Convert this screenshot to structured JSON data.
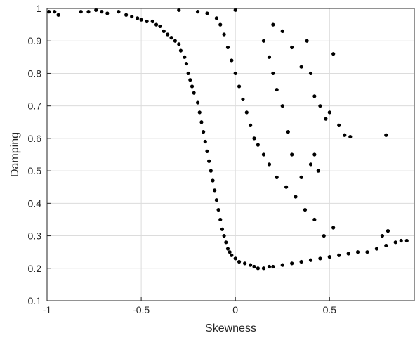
{
  "chart_data": {
    "type": "scatter",
    "title": "",
    "xlabel": "Skewness",
    "ylabel": "Damping",
    "xlim": [
      -1,
      0.95
    ],
    "ylim": [
      0.1,
      1
    ],
    "xticks": [
      -1,
      -0.5,
      0,
      0.5
    ],
    "xtick_labels": [
      "-1",
      "-0.5",
      "0",
      "0.5"
    ],
    "yticks": [
      0.1,
      0.2,
      0.3,
      0.4,
      0.5,
      0.6,
      0.7,
      0.8,
      0.9,
      1
    ],
    "ytick_labels": [
      "0.1",
      "0.2",
      "0.3",
      "0.4",
      "0.5",
      "0.6",
      "0.7",
      "0.8",
      "0.9",
      "1"
    ],
    "grid": true,
    "marker_color": "#000000",
    "series": [
      {
        "name": "",
        "points": [
          [
            -0.99,
            0.99
          ],
          [
            -0.96,
            0.99
          ],
          [
            -0.94,
            0.98
          ],
          [
            -0.82,
            0.99
          ],
          [
            -0.78,
            0.99
          ],
          [
            -0.74,
            0.995
          ],
          [
            -0.71,
            0.99
          ],
          [
            -0.68,
            0.985
          ],
          [
            -0.62,
            0.99
          ],
          [
            -0.58,
            0.98
          ],
          [
            -0.55,
            0.975
          ],
          [
            -0.52,
            0.97
          ],
          [
            -0.5,
            0.965
          ],
          [
            -0.47,
            0.96
          ],
          [
            -0.44,
            0.96
          ],
          [
            -0.42,
            0.95
          ],
          [
            -0.4,
            0.945
          ],
          [
            -0.38,
            0.93
          ],
          [
            -0.36,
            0.92
          ],
          [
            -0.34,
            0.91
          ],
          [
            -0.32,
            0.9
          ],
          [
            -0.3,
            0.89
          ],
          [
            -0.29,
            0.87
          ],
          [
            -0.27,
            0.85
          ],
          [
            -0.26,
            0.83
          ],
          [
            -0.25,
            0.8
          ],
          [
            -0.24,
            0.78
          ],
          [
            -0.23,
            0.76
          ],
          [
            -0.22,
            0.74
          ],
          [
            -0.2,
            0.71
          ],
          [
            -0.19,
            0.68
          ],
          [
            -0.18,
            0.65
          ],
          [
            -0.17,
            0.62
          ],
          [
            -0.16,
            0.59
          ],
          [
            -0.15,
            0.56
          ],
          [
            -0.14,
            0.53
          ],
          [
            -0.13,
            0.5
          ],
          [
            -0.12,
            0.47
          ],
          [
            -0.11,
            0.44
          ],
          [
            -0.1,
            0.41
          ],
          [
            -0.09,
            0.38
          ],
          [
            -0.08,
            0.35
          ],
          [
            -0.07,
            0.32
          ],
          [
            -0.06,
            0.3
          ],
          [
            -0.05,
            0.28
          ],
          [
            -0.04,
            0.26
          ],
          [
            -0.03,
            0.25
          ],
          [
            -0.02,
            0.24
          ],
          [
            0.0,
            0.23
          ],
          [
            0.02,
            0.22
          ],
          [
            0.05,
            0.215
          ],
          [
            0.08,
            0.21
          ],
          [
            0.1,
            0.205
          ],
          [
            0.12,
            0.2
          ],
          [
            0.15,
            0.2
          ],
          [
            0.18,
            0.205
          ],
          [
            0.2,
            0.205
          ],
          [
            0.25,
            0.21
          ],
          [
            0.3,
            0.215
          ],
          [
            0.35,
            0.22
          ],
          [
            0.4,
            0.225
          ],
          [
            0.45,
            0.23
          ],
          [
            0.5,
            0.235
          ],
          [
            0.55,
            0.24
          ],
          [
            0.6,
            0.245
          ],
          [
            0.65,
            0.25
          ],
          [
            0.7,
            0.25
          ],
          [
            0.75,
            0.26
          ],
          [
            0.8,
            0.27
          ],
          [
            0.85,
            0.28
          ],
          [
            0.88,
            0.285
          ],
          [
            0.91,
            0.285
          ],
          [
            0.78,
            0.3
          ],
          [
            0.81,
            0.315
          ],
          [
            0.52,
            0.325
          ],
          [
            0.47,
            0.3
          ],
          [
            0.42,
            0.35
          ],
          [
            0.37,
            0.38
          ],
          [
            0.32,
            0.42
          ],
          [
            0.27,
            0.45
          ],
          [
            0.22,
            0.48
          ],
          [
            0.18,
            0.52
          ],
          [
            0.15,
            0.55
          ],
          [
            0.12,
            0.58
          ],
          [
            0.1,
            0.6
          ],
          [
            0.08,
            0.64
          ],
          [
            0.06,
            0.68
          ],
          [
            0.04,
            0.72
          ],
          [
            0.02,
            0.76
          ],
          [
            0.0,
            0.8
          ],
          [
            -0.02,
            0.84
          ],
          [
            -0.04,
            0.88
          ],
          [
            -0.06,
            0.92
          ],
          [
            -0.08,
            0.95
          ],
          [
            -0.1,
            0.97
          ],
          [
            -0.15,
            0.985
          ],
          [
            -0.2,
            0.99
          ],
          [
            -0.3,
            0.995
          ],
          [
            0.0,
            0.995
          ],
          [
            0.2,
            0.95
          ],
          [
            0.25,
            0.93
          ],
          [
            0.3,
            0.88
          ],
          [
            0.35,
            0.82
          ],
          [
            0.38,
            0.9
          ],
          [
            0.4,
            0.8
          ],
          [
            0.42,
            0.73
          ],
          [
            0.45,
            0.7
          ],
          [
            0.48,
            0.66
          ],
          [
            0.5,
            0.68
          ],
          [
            0.52,
            0.86
          ],
          [
            0.55,
            0.64
          ],
          [
            0.58,
            0.61
          ],
          [
            0.61,
            0.605
          ],
          [
            0.8,
            0.61
          ],
          [
            0.42,
            0.55
          ],
          [
            0.44,
            0.5
          ],
          [
            0.4,
            0.52
          ],
          [
            0.35,
            0.48
          ],
          [
            0.3,
            0.55
          ],
          [
            0.28,
            0.62
          ],
          [
            0.25,
            0.7
          ],
          [
            0.22,
            0.75
          ],
          [
            0.2,
            0.8
          ],
          [
            0.18,
            0.85
          ],
          [
            0.15,
            0.9
          ]
        ]
      }
    ]
  }
}
